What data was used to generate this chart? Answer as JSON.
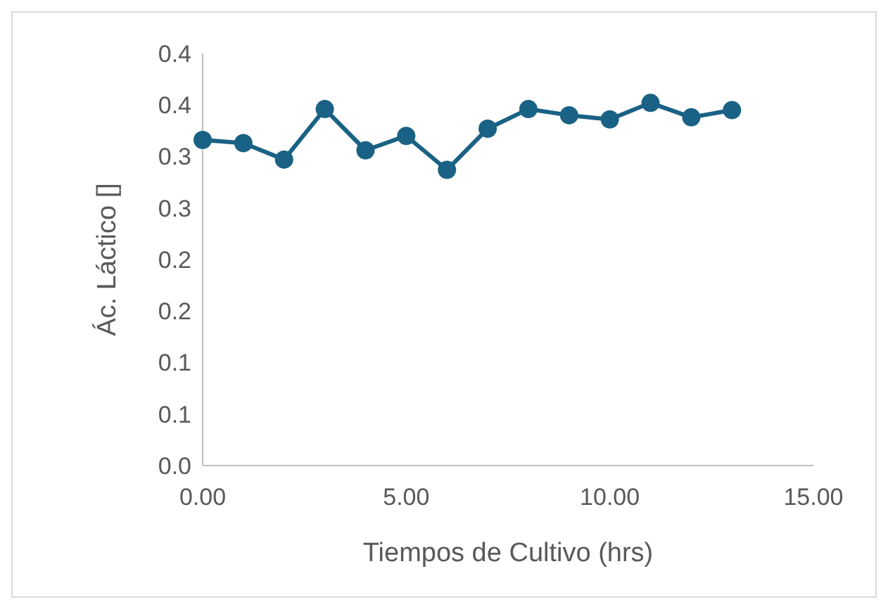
{
  "chart_data": {
    "type": "line",
    "xlabel": "Tiempos de Cultivo (hrs)",
    "ylabel": "Ác. Láctico []",
    "x": [
      0,
      1,
      2,
      3,
      4,
      5,
      6,
      7,
      8,
      9,
      10,
      11,
      12,
      13
    ],
    "series": [
      {
        "color": "#1a6285",
        "values": [
          0.316,
          0.313,
          0.297,
          0.346,
          0.306,
          0.32,
          0.287,
          0.327,
          0.346,
          0.34,
          0.336,
          0.352,
          0.338,
          0.345
        ]
      }
    ],
    "xlim": [
      0,
      15
    ],
    "xticks": [
      {
        "value": 0,
        "label": "0.00"
      },
      {
        "value": 5,
        "label": "5.00"
      },
      {
        "value": 10,
        "label": "10.00"
      },
      {
        "value": 15,
        "label": "15.00"
      }
    ],
    "ylim": [
      0,
      0.4
    ],
    "yticks": [
      {
        "value": 0,
        "label": "0.0"
      },
      {
        "value": 0.05,
        "label": "0.1"
      },
      {
        "value": 0.1,
        "label": "0.1"
      },
      {
        "value": 0.15,
        "label": "0.2"
      },
      {
        "value": 0.2,
        "label": "0.2"
      },
      {
        "value": 0.25,
        "label": "0.3"
      },
      {
        "value": 0.3,
        "label": "0.3"
      },
      {
        "value": 0.35,
        "label": "0.4"
      },
      {
        "value": 0.4,
        "label": "0.4"
      }
    ],
    "marker": "circle",
    "line_style": "solid",
    "grid": false
  }
}
